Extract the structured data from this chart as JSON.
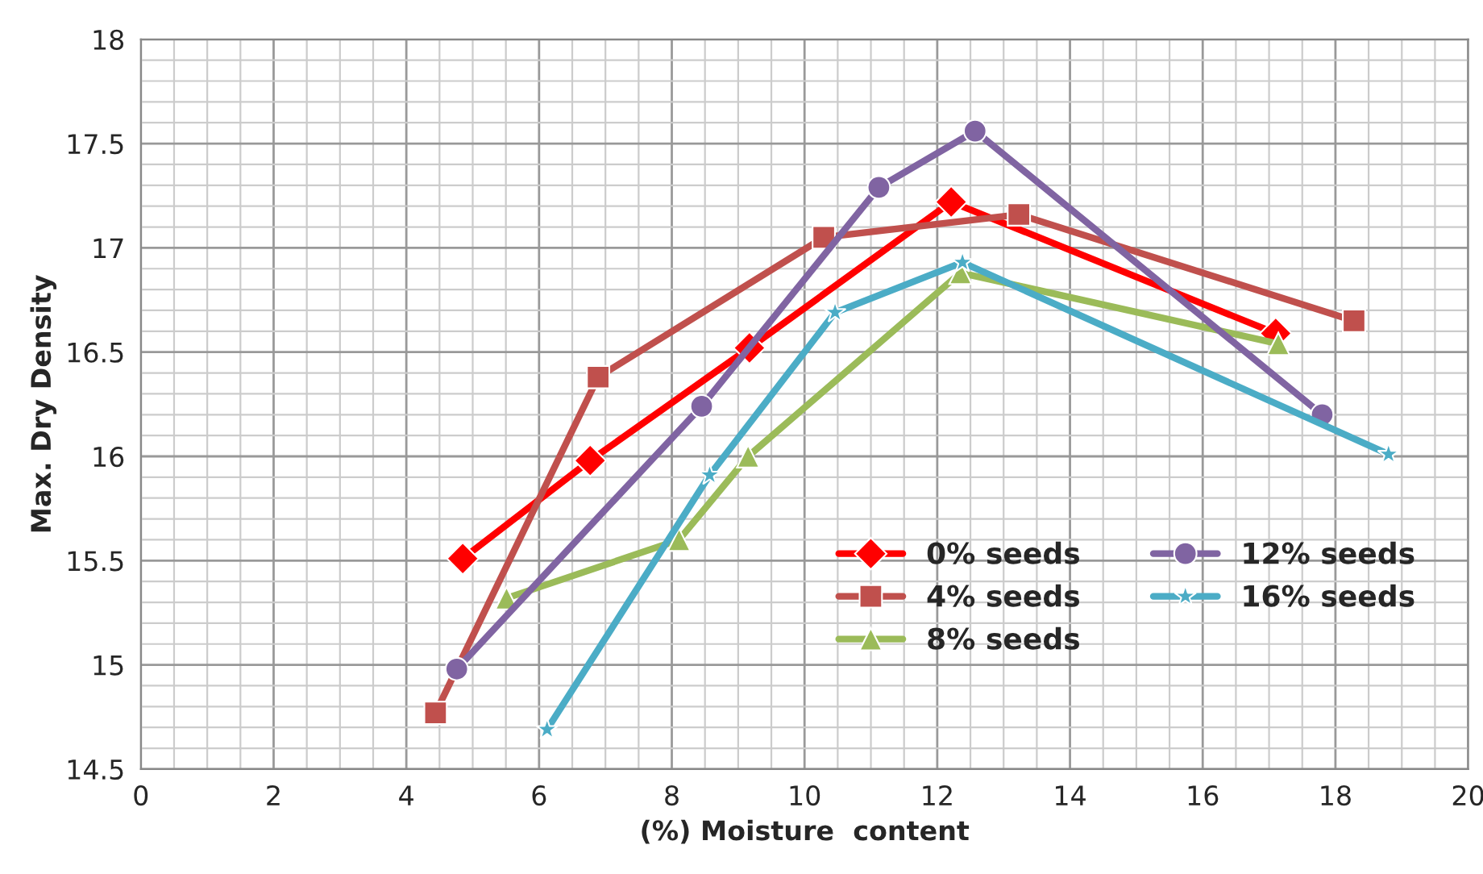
{
  "chart_data": {
    "type": "line",
    "xlabel": "(%) Moisture  content",
    "ylabel": "Max. Dry Density",
    "xlim": [
      0,
      20
    ],
    "xticks": [
      0,
      2,
      4,
      6,
      8,
      10,
      12,
      14,
      16,
      18,
      20
    ],
    "ylim": [
      14.5,
      18
    ],
    "yticks": [
      14.5,
      15,
      15.5,
      16,
      16.5,
      17,
      17.5,
      18
    ],
    "grid": true,
    "legend": "bottom right",
    "line_style": "solid",
    "series": [
      {
        "name": "0% seeds",
        "color": "#ff0000",
        "marker": "diamond",
        "x": [
          4.85,
          6.77,
          9.17,
          12.21,
          17.1
        ],
        "values": [
          15.51,
          15.98,
          16.52,
          17.22,
          16.59
        ]
      },
      {
        "name": "4% seeds",
        "color": "#c0504d",
        "marker": "square",
        "x": [
          4.44,
          6.89,
          10.29,
          13.23,
          18.28
        ],
        "values": [
          14.77,
          16.38,
          17.05,
          17.16,
          16.65
        ]
      },
      {
        "name": "8% seeds",
        "color": "#9bbb59",
        "marker": "triangle",
        "x": [
          5.51,
          8.11,
          9.15,
          12.35,
          17.14
        ],
        "values": [
          15.32,
          15.6,
          16.0,
          16.88,
          16.54
        ]
      },
      {
        "name": "12% seeds",
        "color": "#8064a2",
        "marker": "circle",
        "x": [
          4.76,
          8.45,
          11.12,
          12.57,
          17.8
        ],
        "values": [
          14.98,
          16.24,
          17.29,
          17.56,
          16.2
        ]
      },
      {
        "name": "16% seeds",
        "color": "#4bacc6",
        "marker": "star",
        "x": [
          6.12,
          8.57,
          10.46,
          12.38,
          18.8
        ],
        "values": [
          14.69,
          15.91,
          16.69,
          16.93,
          16.01
        ]
      }
    ]
  }
}
